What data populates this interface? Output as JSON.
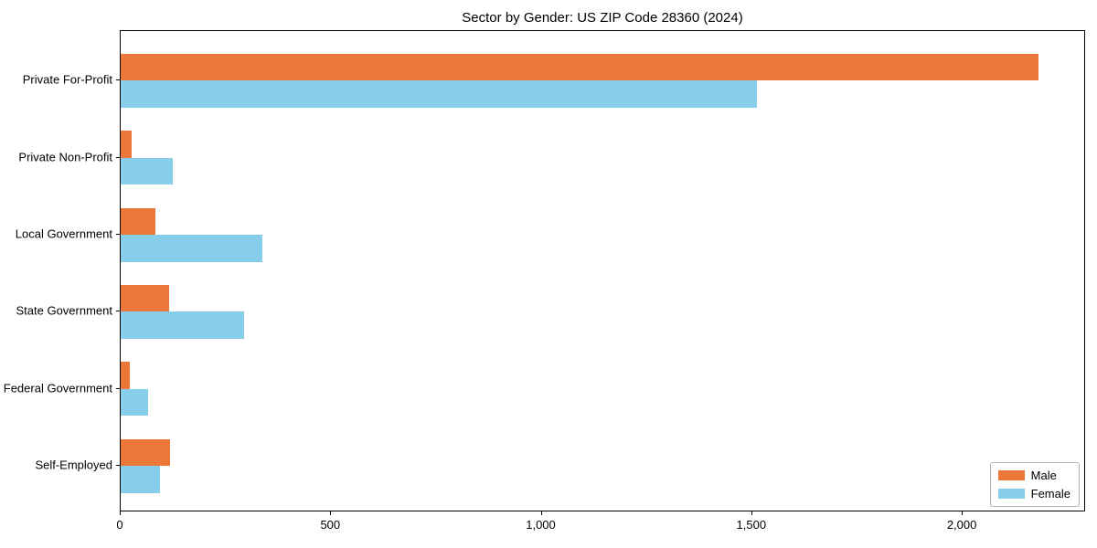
{
  "figure": {
    "background_color": "#ffffff",
    "spine_color": "#000000",
    "text_color": "#000000"
  },
  "chart_data": {
    "type": "bar",
    "orientation": "horizontal",
    "title": "Sector by Gender: US ZIP Code 28360 (2024)",
    "categories": [
      "Private For-Profit",
      "Private Non-Profit",
      "Local Government",
      "State Government",
      "Federal Government",
      "Self-Employed"
    ],
    "series": [
      {
        "name": "Male",
        "color": "#EB7839",
        "values": [
          2181,
          27,
          83,
          114,
          22,
          117
        ]
      },
      {
        "name": "Female",
        "color": "#87CEEB",
        "values": [
          1512,
          124,
          336,
          293,
          64,
          94
        ]
      }
    ],
    "xlabel": "",
    "ylabel": "",
    "xlim": [
      0,
      2293
    ],
    "xticks": [
      0,
      500,
      1000,
      1500,
      2000
    ],
    "xtick_labels": [
      "0",
      "500",
      "1,000",
      "1,500",
      "2,000"
    ],
    "legend_entries": [
      "Male",
      "Female"
    ],
    "legend_position": "lower right",
    "grid": false
  }
}
